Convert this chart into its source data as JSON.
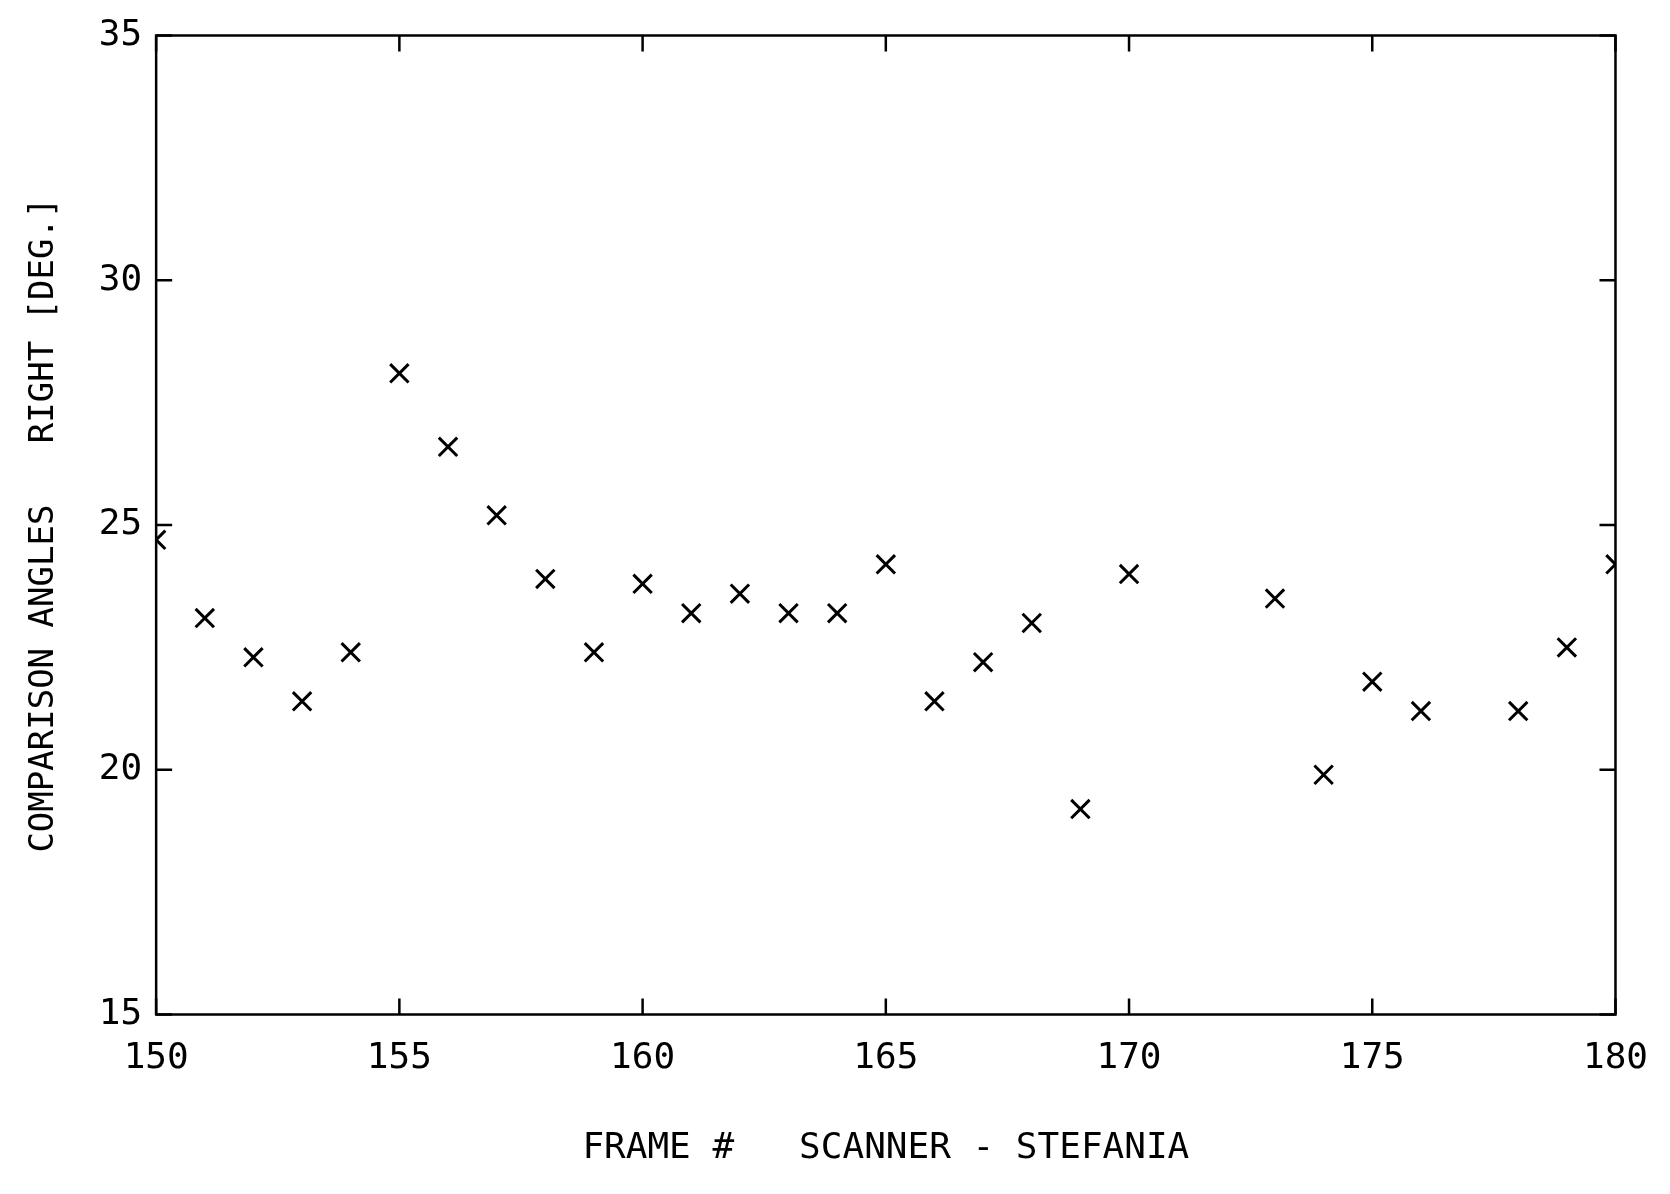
{
  "chart_data": {
    "type": "scatter",
    "xlabel": "FRAME #   SCANNER - STEFANIA",
    "ylabel": "COMPARISON ANGLES   RIGHT [DEG.]",
    "x": [
      150,
      151,
      152,
      153,
      154,
      155,
      156,
      157,
      158,
      159,
      160,
      161,
      162,
      163,
      164,
      165,
      166,
      167,
      168,
      169,
      170,
      173,
      174,
      175,
      176,
      178,
      179,
      180
    ],
    "series": [
      {
        "color": "#000000",
        "values": [
          24.7,
          23.1,
          22.3,
          21.4,
          22.4,
          28.1,
          26.6,
          25.2,
          23.9,
          22.4,
          23.8,
          23.2,
          23.6,
          23.2,
          23.2,
          24.2,
          21.4,
          22.2,
          23.0,
          19.2,
          24.0,
          23.5,
          19.9,
          21.8,
          21.2,
          21.2,
          22.5,
          24.2
        ]
      }
    ],
    "xlim": [
      150,
      180
    ],
    "xticks": [
      150,
      155,
      160,
      165,
      170,
      175,
      180
    ],
    "ylim": [
      15,
      35
    ],
    "yticks": [
      15,
      20,
      25,
      30,
      35
    ],
    "grid": false,
    "legend": false,
    "marker": "cross"
  }
}
